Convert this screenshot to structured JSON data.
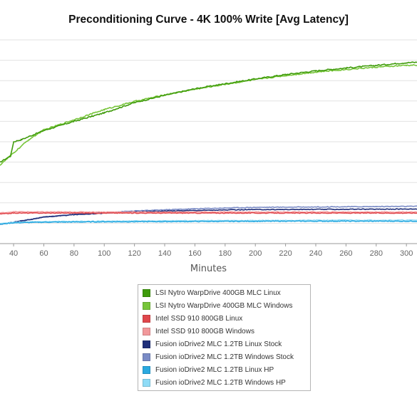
{
  "chart_data": {
    "type": "line",
    "title": "Preconditioning Curve - 4K 100% Write [Avg Latency]",
    "xlabel": "Minutes",
    "ylabel": "",
    "x_ticks": [
      40,
      60,
      80,
      100,
      120,
      140,
      160,
      180,
      200,
      220,
      240,
      260,
      280,
      300
    ],
    "xlim": [
      31,
      307
    ],
    "ylim": [
      0,
      10
    ],
    "y_scale_note": "",
    "grid": true,
    "legend_position": "bottom-center",
    "series": [
      {
        "name": "LSI Nytro WarpDrive 400GB MLC Linux",
        "color": "#3f9b0b",
        "points": [
          [
            31,
            4.0
          ],
          [
            38,
            4.3
          ],
          [
            40,
            5.0
          ],
          [
            45,
            5.1
          ],
          [
            60,
            5.55
          ],
          [
            80,
            6.0
          ],
          [
            100,
            6.42
          ],
          [
            120,
            6.92
          ],
          [
            140,
            7.28
          ],
          [
            160,
            7.6
          ],
          [
            180,
            7.85
          ],
          [
            200,
            8.08
          ],
          [
            220,
            8.3
          ],
          [
            240,
            8.48
          ],
          [
            260,
            8.62
          ],
          [
            280,
            8.75
          ],
          [
            300,
            8.88
          ],
          [
            307,
            8.9
          ]
        ]
      },
      {
        "name": "LSI Nytro WarpDrive 400GB MLC Windows",
        "color": "#77c53a",
        "points": [
          [
            31,
            3.85
          ],
          [
            40,
            4.45
          ],
          [
            50,
            5.1
          ],
          [
            60,
            5.58
          ],
          [
            80,
            6.08
          ],
          [
            100,
            6.58
          ],
          [
            120,
            6.98
          ],
          [
            140,
            7.3
          ],
          [
            160,
            7.58
          ],
          [
            180,
            7.82
          ],
          [
            200,
            8.05
          ],
          [
            220,
            8.25
          ],
          [
            240,
            8.42
          ],
          [
            260,
            8.55
          ],
          [
            280,
            8.66
          ],
          [
            300,
            8.75
          ],
          [
            307,
            8.76
          ]
        ]
      },
      {
        "name": "Intel SSD 910 800GB Linux",
        "color": "#e0474c",
        "points": [
          [
            31,
            1.45
          ],
          [
            40,
            1.5
          ],
          [
            60,
            1.5
          ],
          [
            100,
            1.5
          ],
          [
            140,
            1.5
          ],
          [
            180,
            1.5
          ],
          [
            220,
            1.5
          ],
          [
            260,
            1.5
          ],
          [
            300,
            1.5
          ],
          [
            307,
            1.5
          ]
        ]
      },
      {
        "name": "Intel SSD 910 800GB Windows",
        "color": "#f2989b",
        "points": [
          [
            31,
            1.5
          ],
          [
            40,
            1.56
          ],
          [
            60,
            1.55
          ],
          [
            100,
            1.55
          ],
          [
            140,
            1.55
          ],
          [
            180,
            1.55
          ],
          [
            220,
            1.55
          ],
          [
            260,
            1.55
          ],
          [
            300,
            1.55
          ],
          [
            307,
            1.55
          ]
        ]
      },
      {
        "name": "Fusion ioDrive2 MLC 1.2TB Linux Stock",
        "color": "#1f2f7a",
        "points": [
          [
            31,
            0.95
          ],
          [
            40,
            1.05
          ],
          [
            60,
            1.3
          ],
          [
            80,
            1.42
          ],
          [
            100,
            1.5
          ],
          [
            120,
            1.56
          ],
          [
            140,
            1.6
          ],
          [
            160,
            1.63
          ],
          [
            180,
            1.65
          ],
          [
            200,
            1.67
          ],
          [
            240,
            1.68
          ],
          [
            280,
            1.69
          ],
          [
            307,
            1.7
          ]
        ]
      },
      {
        "name": "Fusion ioDrive2 MLC 1.2TB Windows Stock",
        "color": "#7a8bc6",
        "points": [
          [
            31,
            0.95
          ],
          [
            40,
            1.05
          ],
          [
            60,
            1.3
          ],
          [
            80,
            1.43
          ],
          [
            100,
            1.52
          ],
          [
            120,
            1.6
          ],
          [
            140,
            1.66
          ],
          [
            160,
            1.71
          ],
          [
            180,
            1.75
          ],
          [
            200,
            1.78
          ],
          [
            240,
            1.8
          ],
          [
            280,
            1.82
          ],
          [
            307,
            1.83
          ]
        ]
      },
      {
        "name": "Fusion ioDrive2 MLC 1.2TB Linux HP",
        "color": "#2aa9e0",
        "points": [
          [
            31,
            0.95
          ],
          [
            40,
            1.02
          ],
          [
            60,
            1.05
          ],
          [
            100,
            1.07
          ],
          [
            140,
            1.08
          ],
          [
            180,
            1.09
          ],
          [
            220,
            1.1
          ],
          [
            260,
            1.1
          ],
          [
            307,
            1.1
          ]
        ]
      },
      {
        "name": "Fusion ioDrive2 MLC 1.2TB Windows HP",
        "color": "#8fdcf7",
        "points": [
          [
            31,
            0.98
          ],
          [
            40,
            1.05
          ],
          [
            60,
            1.08
          ],
          [
            100,
            1.1
          ],
          [
            140,
            1.12
          ],
          [
            180,
            1.13
          ],
          [
            220,
            1.14
          ],
          [
            260,
            1.15
          ],
          [
            307,
            1.15
          ]
        ]
      }
    ]
  }
}
